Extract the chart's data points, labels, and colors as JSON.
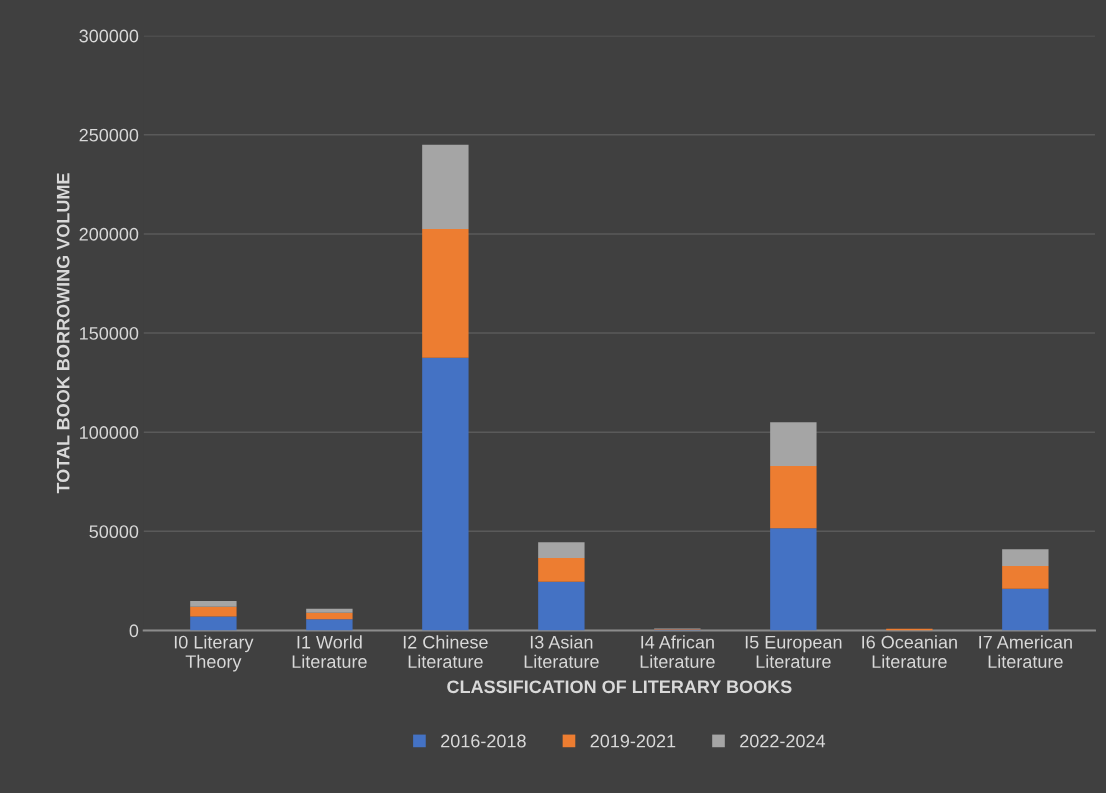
{
  "chart_data": {
    "type": "bar",
    "stacked": true,
    "xlabel": "CLASSIFICATION OF LITERARY BOOKS",
    "ylabel": "TOTAL BOOK BORROWING VOLUME",
    "categories": [
      "I0 Literary\nTheory",
      "I1 World\nLiterature",
      "I2 Chinese\nLiterature",
      "I3 Asian\nLiterature",
      "I4 African\nLiterature",
      "I5 European\nLiterature",
      "I6 Oceanian\nLiterature",
      "I7 American\nLiterature"
    ],
    "series": [
      {
        "name": "2016-2018",
        "color": "#4472c4",
        "values": [
          7000,
          5700,
          137500,
          24500,
          500,
          51500,
          null,
          21000
        ]
      },
      {
        "name": "2019-2021",
        "color": "#ed7d31",
        "values": [
          5000,
          3200,
          65000,
          12000,
          200,
          31500,
          900,
          11500
        ]
      },
      {
        "name": "2022-2024",
        "color": "#a5a5a5",
        "values": [
          2800,
          2100,
          42500,
          8000,
          300,
          22000,
          null,
          8500
        ]
      }
    ],
    "ylim": [
      0,
      300000
    ],
    "yticks": [
      0,
      50000,
      100000,
      150000,
      200000,
      250000,
      300000
    ],
    "grid": "y",
    "legend": "bottom"
  }
}
